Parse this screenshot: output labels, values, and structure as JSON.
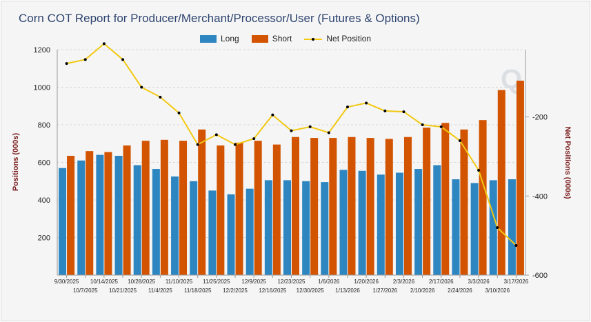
{
  "chart_data": {
    "type": "bar",
    "title": "Corn COT Report for Producer/Merchant/Processor/User (Futures & Options)",
    "ylabel": "Positions (000s)",
    "y2label": "Net Positions (000s)",
    "ylim": [
      0,
      1200
    ],
    "y2lim": [
      -600,
      -30
    ],
    "yticks": [
      200,
      400,
      600,
      800,
      1000,
      1200
    ],
    "y2ticks": [
      -200,
      -400,
      -600
    ],
    "grid": true,
    "legend_position": "top-center",
    "categories": [
      "9/30/2025",
      "10/7/2025",
      "10/14/2025",
      "10/21/2025",
      "10/28/2025",
      "11/4/2025",
      "11/10/2025",
      "11/18/2025",
      "11/25/2025",
      "12/2/2025",
      "12/9/2025",
      "12/16/2025",
      "12/23/2025",
      "12/30/2025",
      "1/6/2026",
      "1/13/2026",
      "1/20/2026",
      "1/27/2026",
      "2/3/2026",
      "2/10/2026",
      "2/17/2026",
      "2/24/2026",
      "3/3/2026",
      "3/10/2026",
      "3/17/2026"
    ],
    "series": [
      {
        "name": "Long",
        "kind": "bar",
        "axis": "left",
        "color": "#2e86c1",
        "values": [
          570,
          610,
          640,
          635,
          585,
          565,
          525,
          500,
          450,
          430,
          460,
          505,
          505,
          500,
          495,
          560,
          555,
          535,
          545,
          565,
          585,
          510,
          490,
          505,
          510
        ]
      },
      {
        "name": "Short",
        "kind": "bar",
        "axis": "left",
        "color": "#d35400",
        "values": [
          635,
          660,
          655,
          690,
          715,
          720,
          715,
          775,
          690,
          705,
          715,
          695,
          735,
          730,
          730,
          735,
          730,
          725,
          735,
          785,
          810,
          775,
          825,
          985,
          1035
        ]
      },
      {
        "name": "Net Position",
        "kind": "line",
        "axis": "right",
        "color": "#f2c811",
        "values": [
          -65,
          -55,
          -15,
          -55,
          -125,
          -150,
          -190,
          -270,
          -245,
          -270,
          -255,
          -195,
          -235,
          -225,
          -240,
          -175,
          -165,
          -185,
          -187,
          -220,
          -225,
          -260,
          -335,
          -480,
          -525
        ]
      }
    ]
  }
}
